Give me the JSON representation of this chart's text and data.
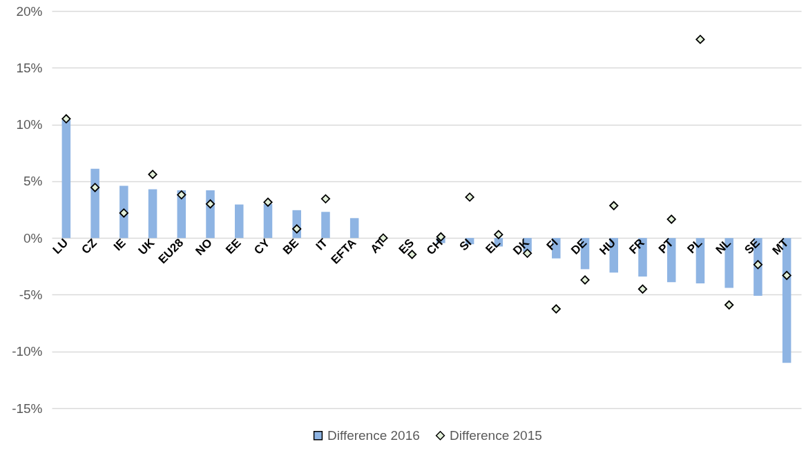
{
  "chart_data": {
    "type": "bar",
    "categories": [
      "LU",
      "CZ",
      "IE",
      "UK",
      "EU28",
      "NO",
      "EE",
      "CY",
      "BE",
      "IT",
      "EFTA",
      "AT",
      "ES",
      "CH",
      "SI",
      "EL",
      "DK",
      "FI",
      "DE",
      "HU",
      "FR",
      "PT",
      "PL",
      "NL",
      "SE",
      "MT"
    ],
    "series": [
      {
        "name": "Difference 2016",
        "color": "#8eb4e3",
        "values": [
          10.4,
          6.1,
          4.6,
          4.3,
          4.2,
          4.2,
          2.95,
          3.0,
          2.45,
          2.3,
          1.75,
          null,
          null,
          -0.45,
          -0.55,
          -0.75,
          -1.2,
          -1.8,
          -2.75,
          -3.05,
          -3.4,
          -3.9,
          -4.0,
          -4.4,
          -5.1,
          -11.0
        ]
      },
      {
        "name": "Difference 2015",
        "type": "scatter",
        "color": "#e2efd9",
        "values": [
          10.5,
          4.45,
          2.2,
          5.6,
          3.8,
          3.0,
          null,
          3.15,
          0.8,
          3.45,
          null,
          0.0,
          -1.45,
          0.1,
          3.6,
          0.3,
          -1.35,
          -6.25,
          -3.7,
          2.85,
          -4.5,
          1.65,
          17.5,
          -5.9,
          -2.35,
          -3.3
        ]
      }
    ],
    "ylim": [
      -15,
      20
    ],
    "yticks": [
      {
        "value": -15,
        "label": "-15%"
      },
      {
        "value": -10,
        "label": "-10%"
      },
      {
        "value": -5,
        "label": "-5%"
      },
      {
        "value": 0,
        "label": "0%"
      },
      {
        "value": 5,
        "label": "5%"
      },
      {
        "value": 10,
        "label": "10%"
      },
      {
        "value": 15,
        "label": "15%"
      },
      {
        "value": 20,
        "label": "20%"
      }
    ],
    "grid": "y",
    "legend": "bottom",
    "marker": "diamond"
  }
}
